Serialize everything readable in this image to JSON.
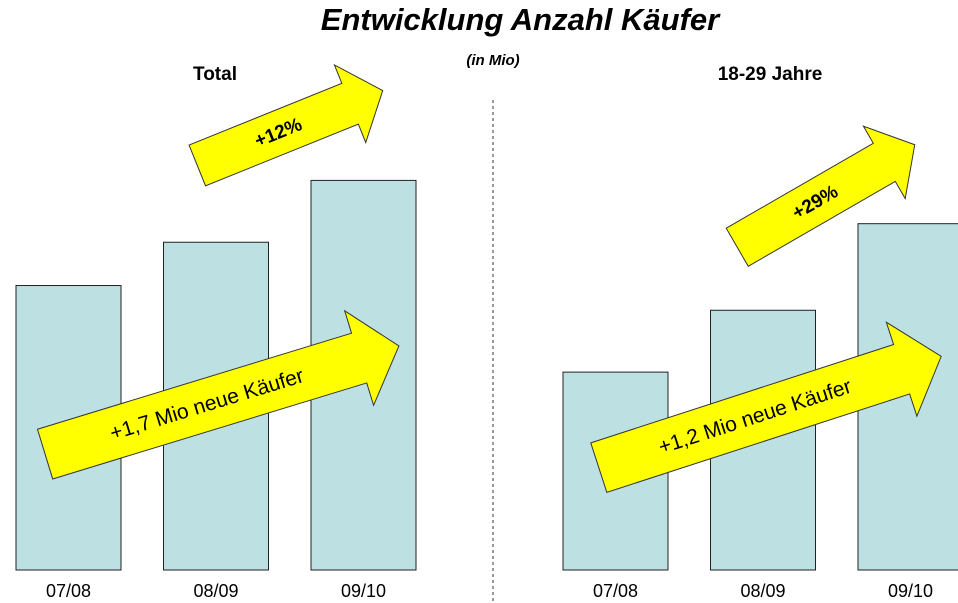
{
  "title": "Entwicklung Anzahl Käufer",
  "subtitle": "(in Mio)",
  "chart_data": [
    {
      "type": "bar",
      "title": "Total",
      "categories": [
        "07/08",
        "08/09",
        "09/10"
      ],
      "values": [
        14.2,
        14.9,
        15.9
      ],
      "color": "#bde0e3",
      "ylim": [
        9.6,
        17.2
      ],
      "annotations": [
        "+12%",
        "+1,7 Mio neue Käufer"
      ]
    },
    {
      "type": "bar",
      "title": "18-29 Jahre",
      "categories": [
        "07/08",
        "08/09",
        "09/10"
      ],
      "values": [
        4.1,
        4.6,
        5.3
      ],
      "color": "#bde0e3",
      "ylim": [
        2.5,
        6.3
      ],
      "annotations": [
        "+29%",
        "+1,2 Mio neue Käufer"
      ]
    }
  ]
}
